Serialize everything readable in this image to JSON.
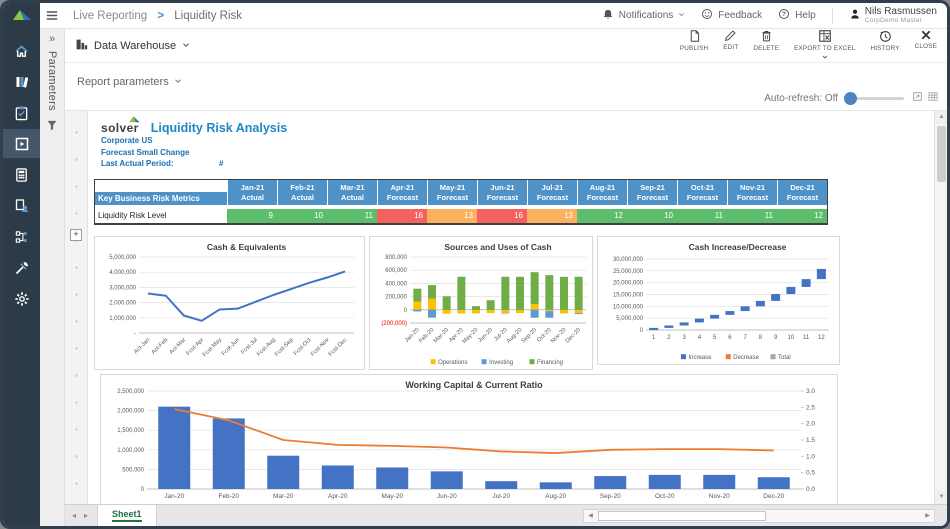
{
  "topbar": {
    "breadcrumb": {
      "section": "Live Reporting",
      "separator": ">",
      "page": "Liquidity Risk"
    },
    "notifications_label": "Notifications",
    "feedback_label": "Feedback",
    "help_label": "Help",
    "user": {
      "name": "Nils Rasmussen",
      "role": "CorpDemo Master"
    }
  },
  "sidebar": {
    "items": [
      {
        "icon": "home",
        "active": false
      },
      {
        "icon": "library",
        "active": false
      },
      {
        "icon": "checklist",
        "active": false
      },
      {
        "icon": "report-viewer",
        "active": true
      },
      {
        "icon": "calculator",
        "active": false
      },
      {
        "icon": "data-transfer",
        "active": false
      },
      {
        "icon": "hierarchy",
        "active": false
      },
      {
        "icon": "tools",
        "active": false
      },
      {
        "icon": "settings",
        "active": false
      }
    ]
  },
  "parameters_panel": {
    "label": "Parameters"
  },
  "toolbar": {
    "source_label": "Data Warehouse",
    "actions": [
      {
        "label": "PUBLISH",
        "icon": "publish"
      },
      {
        "label": "EDIT",
        "icon": "edit"
      },
      {
        "label": "DELETE",
        "icon": "delete"
      },
      {
        "label": "EXPORT TO EXCEL",
        "icon": "excel",
        "caret": true
      },
      {
        "label": "HISTORY",
        "icon": "history"
      },
      {
        "label": "CLOSE",
        "icon": "close"
      }
    ]
  },
  "report_bar": {
    "parameters_label": "Report parameters",
    "auto_refresh_label": "Auto-refresh: Off"
  },
  "report": {
    "logo_text": "solver",
    "title": "Liquidity Risk Analysis",
    "entity": "Corporate US",
    "scenario": "Forecast Small Change",
    "last_actual_label": "Last Actual Period:",
    "last_actual_value": "#",
    "table": {
      "row_header": "Key Business Risk Metrics",
      "columns": [
        {
          "month": "Jan-21",
          "type": "Actual"
        },
        {
          "month": "Feb-21",
          "type": "Actual"
        },
        {
          "month": "Mar-21",
          "type": "Actual"
        },
        {
          "month": "Apr-21",
          "type": "Forecast"
        },
        {
          "month": "May-21",
          "type": "Forecast"
        },
        {
          "month": "Jun-21",
          "type": "Forecast"
        },
        {
          "month": "Jul-21",
          "type": "Forecast"
        },
        {
          "month": "Aug-21",
          "type": "Forecast"
        },
        {
          "month": "Sep-21",
          "type": "Forecast"
        },
        {
          "month": "Oct-21",
          "type": "Forecast"
        },
        {
          "month": "Nov-21",
          "type": "Forecast"
        },
        {
          "month": "Dec-21",
          "type": "Forecast"
        }
      ],
      "rows": [
        {
          "label": "Liquidity Risk Level",
          "values": [
            9,
            10,
            11,
            16,
            13,
            16,
            13,
            12,
            10,
            11,
            11,
            12
          ],
          "status": [
            "green",
            "green",
            "green",
            "red",
            "orange",
            "red",
            "orange",
            "green",
            "green",
            "green",
            "green",
            "green"
          ]
        }
      ],
      "status_colors": {
        "green": "#5CBE6B",
        "orange": "#FBB25F",
        "red": "#F4625F"
      },
      "header_bg": "#4E92C8"
    },
    "sheet_tab": "Sheet1"
  },
  "chart_data": [
    {
      "id": "cash-equivalents",
      "type": "line",
      "title": "Cash & Equivalents",
      "categories": [
        "Act-Jan",
        "Act-Feb",
        "Act-Mar",
        "Fcst-Apr",
        "Fcst-May",
        "Fcst-Jun",
        "Fcst-Jul",
        "Fcst-Aug",
        "Fcst-Sep",
        "Fcst-Oct",
        "Fcst-Nov",
        "Fcst-Dec"
      ],
      "values": [
        2600000,
        2450000,
        1150000,
        800000,
        1550000,
        1600000,
        2050000,
        2500000,
        2900000,
        3300000,
        3650000,
        4050000
      ],
      "ylim": [
        0,
        5000000
      ],
      "ystep": 1000000,
      "yfmt": "dash0",
      "x_rotate": true,
      "color": "#4472C4",
      "grid": true,
      "legend": null
    },
    {
      "id": "sources-uses",
      "type": "stacked-bar",
      "title": "Sources and Uses of Cash",
      "categories": [
        "Jan-20",
        "Feb-20",
        "Mar-20",
        "Apr-20",
        "May-20",
        "Jun-20",
        "Jul-20",
        "Aug-20",
        "Sep-20",
        "Oct-20",
        "Nov-20",
        "Dec-20"
      ],
      "series": [
        {
          "name": "Operations",
          "color": "#FFC000",
          "values": [
            125000,
            170000,
            -60000,
            -55000,
            -55000,
            -50000,
            -45000,
            -50000,
            85000,
            -20000,
            -55000,
            -50000
          ]
        },
        {
          "name": "Investing",
          "color": "#5B9BD5",
          "values": [
            -25000,
            -120000,
            0,
            0,
            0,
            0,
            -10000,
            0,
            -120000,
            -100000,
            0,
            -15000
          ]
        },
        {
          "name": "Financing",
          "color": "#70AD47",
          "values": [
            195000,
            205000,
            205000,
            500000,
            55000,
            145000,
            500000,
            500000,
            485000,
            525000,
            500000,
            500000
          ]
        }
      ],
      "ylim": [
        -200000,
        800000
      ],
      "ystep": 200000,
      "yfmt": "paren",
      "x_rotate": true,
      "grid": true,
      "legend_position": "bottom"
    },
    {
      "id": "cash-increase-decrease",
      "type": "waterfall",
      "title": "Cash Increase/Decrease",
      "categories": [
        "1",
        "2",
        "3",
        "4",
        "5",
        "6",
        "7",
        "8",
        "9",
        "10",
        "11",
        "12"
      ],
      "increments": [
        900000,
        1000000,
        1300000,
        1600000,
        1600000,
        1600000,
        2000000,
        2300000,
        2900000,
        3000000,
        3300000,
        4300000
      ],
      "ylim": [
        0,
        30000000
      ],
      "ystep": 5000000,
      "yfmt": "comma",
      "x_rotate": false,
      "bar_color": "#4472C4",
      "grid": true,
      "legend_position": "bottom",
      "legend_items": [
        {
          "name": "Increase",
          "color": "#4472C4"
        },
        {
          "name": "Decrease",
          "color": "#ED7D31"
        },
        {
          "name": "Total",
          "color": "#A5A5A5"
        }
      ]
    },
    {
      "id": "working-capital",
      "type": "combo",
      "title": "Working Capital & Current Ratio",
      "categories": [
        "Jan-20",
        "Feb-20",
        "Mar-20",
        "Apr-20",
        "May-20",
        "Jun-20",
        "Jul-20",
        "Aug-20",
        "Sep-20",
        "Oct-20",
        "Nov-20",
        "Dec-20"
      ],
      "bars": {
        "name": "Working Capital",
        "color": "#4472C4",
        "values": [
          2100000,
          1800000,
          850000,
          600000,
          550000,
          450000,
          200000,
          170000,
          330000,
          360000,
          360000,
          300000
        ]
      },
      "line": {
        "name": "Current Ratio",
        "color": "#ED7D31",
        "values": [
          2.45,
          2.1,
          1.5,
          1.35,
          1.32,
          1.27,
          1.15,
          1.1,
          1.2,
          1.22,
          1.22,
          1.18
        ]
      },
      "ylim": [
        0,
        2500000
      ],
      "ystep": 500000,
      "yfmt": "comma",
      "y2lim": [
        0,
        3
      ],
      "y2step": 0.5,
      "y2fmt": "dec1",
      "x_rotate": false,
      "grid": true,
      "legend": null
    }
  ]
}
